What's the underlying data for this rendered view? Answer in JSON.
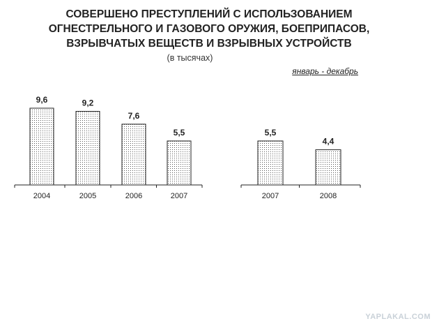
{
  "header": {
    "title": "СОВЕРШЕНО ПРЕСТУПЛЕНИЙ С ИСПОЛЬЗОВАНИЕМ\nОГНЕСТРЕЛЬНОГО И ГАЗОВОГО ОРУЖИЯ, БОЕПРИПАСОВ,\nВЗРЫВЧАТЫХ ВЕЩЕСТВ И ВЗРЫВНЫХ УСТРОЙСТВ",
    "subtitle": "(в тысячах)",
    "period": "январь - декабрь"
  },
  "watermark": "YAPLAKAL.COM",
  "colors": {
    "bar_fill": "#ffffff",
    "bar_dots": "#555555",
    "bar_stroke": "#222222",
    "text": "#222222"
  },
  "chart_data": [
    {
      "type": "bar",
      "title": "СОВЕРШЕНО ПРЕСТУПЛЕНИЙ С ИСПОЛЬЗОВАНИЕМ ОГНЕСТРЕЛЬНОГО И ГАЗОВОГО ОРУЖИЯ, БОЕПРИПАСОВ, ВЗРЫВЧАТЫХ ВЕЩЕСТВ И ВЗРЫВНЫХ УСТРОЙСТВ",
      "categories": [
        "2004",
        "2005",
        "2006",
        "2007"
      ],
      "values": [
        9.6,
        9.2,
        7.6,
        5.5
      ],
      "labels": [
        "9,6",
        "9,2",
        "7,6",
        "5,5"
      ],
      "ylim": [
        0,
        10
      ],
      "grid": false
    },
    {
      "type": "bar",
      "categories": [
        "2007",
        "2008"
      ],
      "values": [
        5.5,
        4.4
      ],
      "labels": [
        "5,5",
        "4,4"
      ],
      "ylim": [
        0,
        10
      ],
      "grid": false
    }
  ]
}
